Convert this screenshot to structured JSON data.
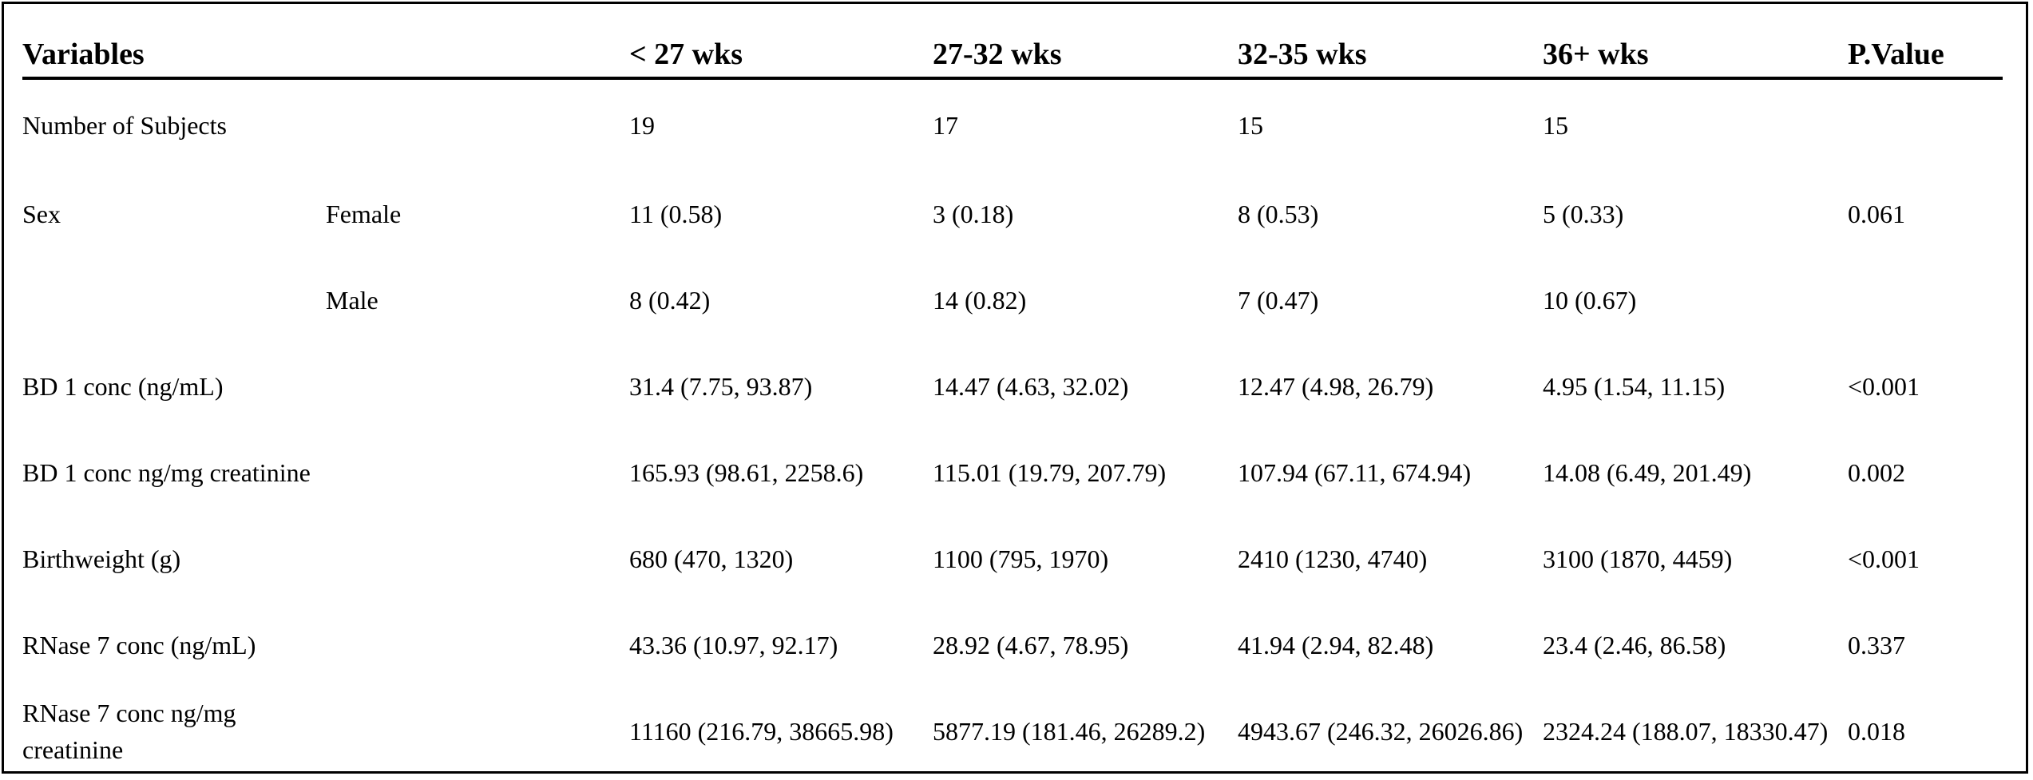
{
  "headers": [
    "Variables",
    "",
    "< 27 wks",
    "27-32 wks",
    "32-35 wks",
    "36+ wks",
    "P.Value"
  ],
  "rows": [
    [
      "Number of Subjects",
      "",
      "19",
      "17",
      "15",
      "15",
      ""
    ],
    [
      "Sex",
      "Female",
      "11 (0.58)",
      "3 (0.18)",
      "8 (0.53)",
      "5 (0.33)",
      "0.061"
    ],
    [
      "",
      "Male",
      "8 (0.42)",
      "14 (0.82)",
      "7 (0.47)",
      "10 (0.67)",
      ""
    ],
    [
      "BD 1 conc (ng/mL)",
      "",
      "31.4 (7.75, 93.87)",
      "14.47 (4.63, 32.02)",
      "12.47 (4.98, 26.79)",
      "4.95 (1.54, 11.15)",
      "<0.001"
    ],
    [
      "BD 1 conc ng/mg creatinine",
      "",
      "165.93 (98.61, 2258.6)",
      "115.01 (19.79, 207.79)",
      "107.94 (67.11, 674.94)",
      "14.08 (6.49, 201.49)",
      "0.002"
    ],
    [
      "Birthweight (g)",
      "",
      "680 (470, 1320)",
      "1100 (795, 1970)",
      "2410 (1230, 4740)",
      "3100 (1870, 4459)",
      "<0.001"
    ],
    [
      "RNase 7 conc (ng/mL)",
      "",
      "43.36 (10.97, 92.17)",
      "28.92 (4.67, 78.95)",
      "41.94 (2.94, 82.48)",
      "23.4 (2.46, 86.58)",
      "0.337"
    ],
    [
      "RNase 7 conc ng/mg creatinine",
      "",
      "11160 (216.79, 38665.98)",
      "5877.19 (181.46, 26289.2)",
      "4943.67 (246.32, 26026.86)",
      "2324.24 (188.07, 18330.47)",
      "0.018"
    ]
  ]
}
